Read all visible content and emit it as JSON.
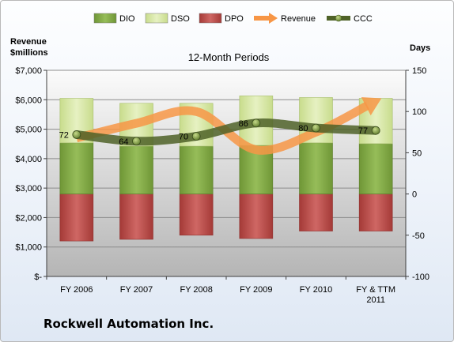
{
  "chart_data": {
    "type": "bar",
    "title": "12-Month Periods",
    "company": "Rockwell Automation Inc.",
    "categories": [
      "FY 2006",
      "FY 2007",
      "FY 2008",
      "FY 2009",
      "FY 2010",
      "FY & TTM 2011"
    ],
    "left_axis": {
      "label_line1": "Revenue",
      "label_line2": "$millions",
      "ylim": [
        0,
        7000
      ],
      "ticks": [
        0,
        1000,
        2000,
        3000,
        4000,
        5000,
        6000,
        7000
      ],
      "tick_labels": [
        "$-",
        "$1,000",
        "$2,000",
        "$3,000",
        "$4,000",
        "$5,000",
        "$6,000",
        "$7,000"
      ]
    },
    "right_axis": {
      "label": "Days",
      "ylim": [
        -100,
        150
      ],
      "ticks": [
        -100,
        -50,
        0,
        50,
        100,
        150
      ],
      "tick_labels": [
        "-100",
        "-50",
        "0",
        "50",
        "100",
        "150"
      ]
    },
    "legend": {
      "position": "top",
      "entries": [
        "DIO",
        "DSO",
        "DPO",
        "Revenue",
        "CCC"
      ]
    },
    "series": [
      {
        "name": "DIO",
        "type": "stacked-bar",
        "axis": "days",
        "values": [
          62,
          58,
          58,
          59,
          62,
          61
        ]
      },
      {
        "name": "DSO",
        "type": "stacked-bar",
        "axis": "days",
        "values": [
          54,
          52,
          52,
          60,
          55,
          55
        ]
      },
      {
        "name": "DPO",
        "type": "stacked-bar",
        "axis": "days",
        "values": [
          -57,
          -55,
          -50,
          -54,
          -45,
          -45
        ]
      },
      {
        "name": "Revenue",
        "type": "line-arrow",
        "axis": "revenue",
        "values": [
          4700,
          5200,
          5600,
          4300,
          4900,
          5950
        ]
      },
      {
        "name": "CCC",
        "type": "line-markers",
        "axis": "days",
        "values": [
          72,
          64,
          70,
          86,
          80,
          77
        ]
      }
    ],
    "ccc_labels": [
      "72",
      "64",
      "70",
      "86",
      "80",
      "77"
    ],
    "colors": {
      "DIO": "#7da443",
      "DSO": "#d9e8a6",
      "DPO": "#c0504d",
      "Revenue": "#f79646",
      "CCC": "#4f6228"
    }
  }
}
